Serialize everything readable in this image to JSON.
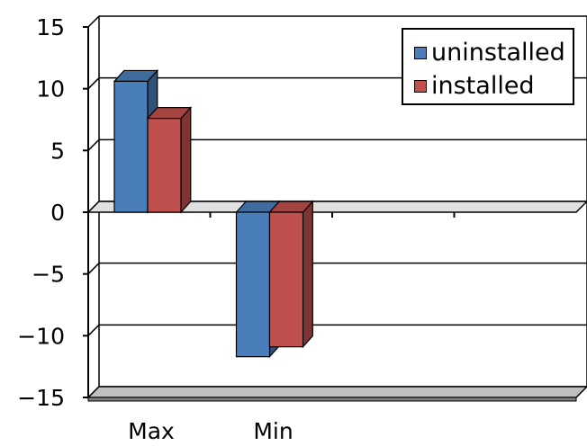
{
  "colors": {
    "uninstalled": "#4a7ebb",
    "installed": "#c0504d",
    "floor": "#bfbfbf"
  },
  "legend": [
    {
      "name": "uninstalled",
      "color": "#4a7ebb"
    },
    {
      "name": "installed",
      "color": "#c0504d"
    }
  ],
  "chart_data": {
    "type": "bar",
    "style": "3d-clustered-column",
    "categories": [
      "Max",
      "Min"
    ],
    "series": [
      {
        "name": "uninstalled",
        "values": [
          10.6,
          -11.7
        ]
      },
      {
        "name": "installed",
        "values": [
          7.6,
          -10.9
        ]
      }
    ],
    "ylim": [
      -15,
      15
    ],
    "yticks": [
      "15",
      "10",
      "5",
      "0",
      "−5",
      "−10",
      "−15"
    ],
    "ytick_values": [
      15,
      10,
      5,
      0,
      -5,
      -10,
      -15
    ],
    "grid": true,
    "legend_position": "top-right"
  }
}
